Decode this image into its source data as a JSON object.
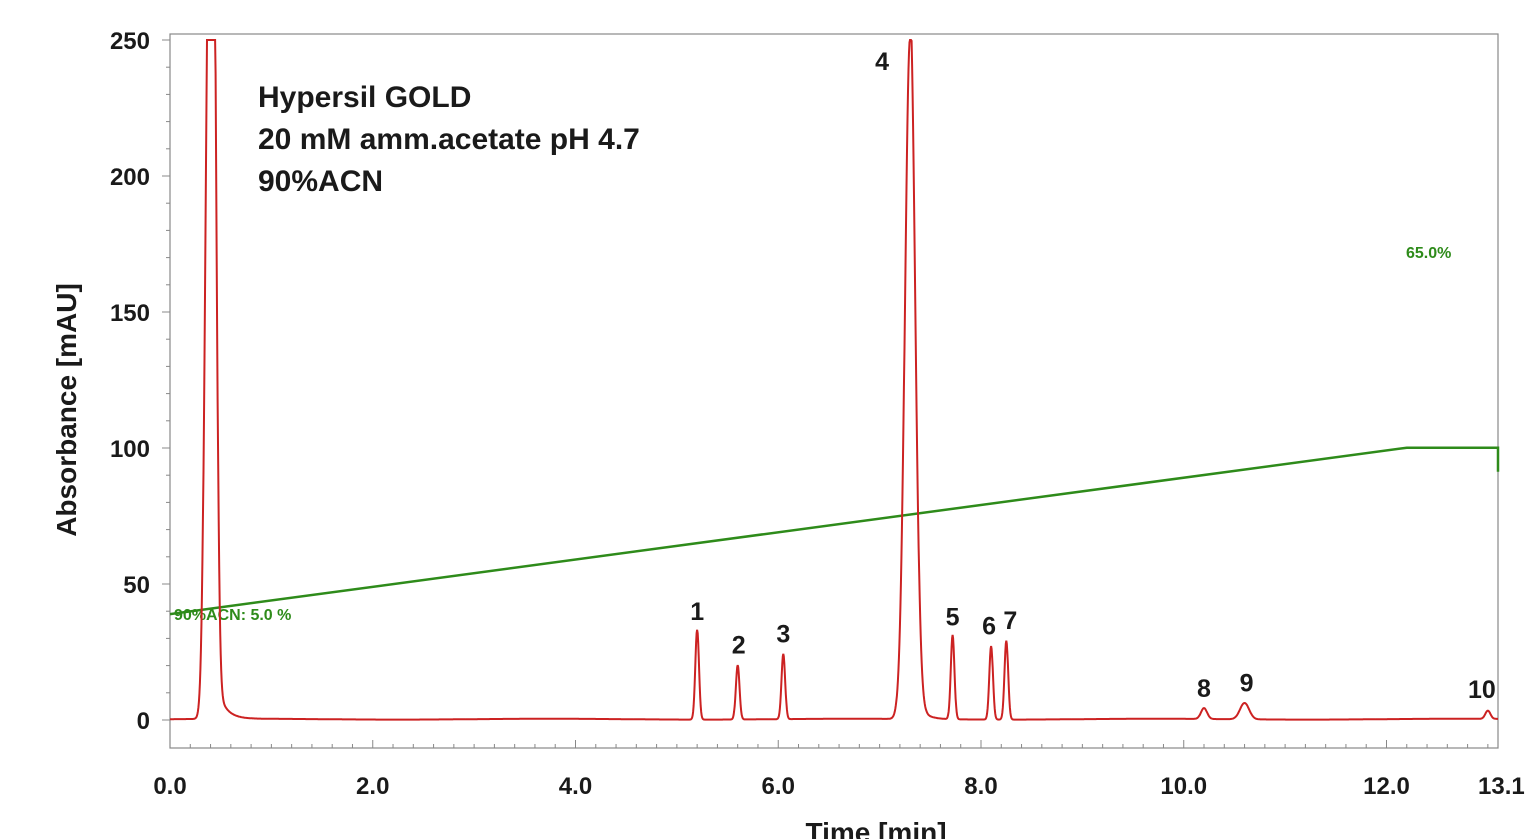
{
  "chart_data": {
    "type": "line",
    "xlabel": "Time [min]",
    "ylabel": "Absorbance [mAU]",
    "xlim": [
      0.0,
      13.1
    ],
    "ylim": [
      0,
      250
    ],
    "x_ticks": [
      "0.0",
      "2.0",
      "4.0",
      "6.0",
      "8.0",
      "10.0",
      "12.0",
      "13.1"
    ],
    "x_tick_values": [
      0.0,
      2.0,
      4.0,
      6.0,
      8.0,
      10.0,
      12.0,
      13.1
    ],
    "y_ticks": [
      "0",
      "50",
      "100",
      "150",
      "200",
      "250"
    ],
    "y_tick_values": [
      0,
      50,
      100,
      150,
      200,
      250
    ],
    "annotations": [
      "Hypersil GOLD",
      "20 mM amm.acetate pH 4.7",
      "90%ACN"
    ],
    "colors": {
      "chromatogram": "#cc2222",
      "gradient": "#2e8b1a",
      "frame": "#888888"
    },
    "series": [
      {
        "role": "chromatogram",
        "peaks": [
          {
            "label": "",
            "x": 0.38,
            "y": 250
          },
          {
            "label": "",
            "x": 0.43,
            "y": 236
          },
          {
            "label": "1",
            "x": 5.2,
            "y": 33
          },
          {
            "label": "2",
            "x": 5.6,
            "y": 20
          },
          {
            "label": "3",
            "x": 6.05,
            "y": 24
          },
          {
            "label": "4",
            "x": 7.3,
            "y": 250
          },
          {
            "label": "5",
            "x": 7.72,
            "y": 31
          },
          {
            "label": "6",
            "x": 8.1,
            "y": 27
          },
          {
            "label": "7",
            "x": 8.25,
            "y": 29
          },
          {
            "label": "8",
            "x": 10.2,
            "y": 4
          },
          {
            "label": "9",
            "x": 10.6,
            "y": 6
          },
          {
            "label": "10",
            "x": 13.0,
            "y": 3
          }
        ]
      },
      {
        "role": "gradient",
        "points": [
          {
            "x": 0.0,
            "y": 5.0
          },
          {
            "x": 12.2,
            "y": 65.0
          },
          {
            "x": 13.1,
            "y": 65.0
          }
        ],
        "start_label": "90%ACN: 5.0 %",
        "end_label": "65.0%"
      }
    ]
  }
}
